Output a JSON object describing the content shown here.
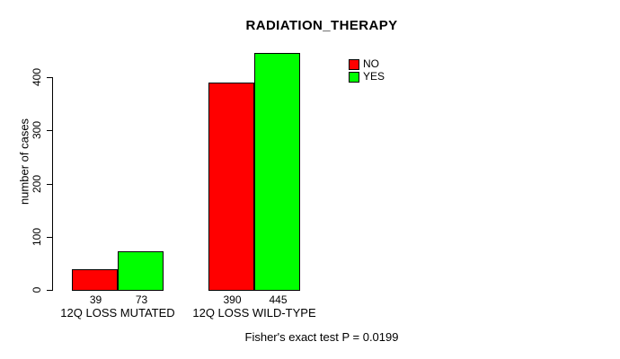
{
  "chart_data": {
    "type": "bar",
    "title": "RADIATION_THERAPY",
    "xlabel": "",
    "ylabel": "number of cases",
    "categories": [
      "12Q LOSS MUTATED",
      "12Q LOSS WILD-TYPE"
    ],
    "series": [
      {
        "name": "NO",
        "color": "#ff0000",
        "values": [
          39,
          390
        ]
      },
      {
        "name": "YES",
        "color": "#00ff00",
        "values": [
          73,
          445
        ]
      }
    ],
    "bar_value_labels": [
      [
        "39",
        "73"
      ],
      [
        "390",
        "445"
      ]
    ],
    "yticks": [
      0,
      100,
      200,
      300,
      400
    ],
    "ylim": [
      0,
      450
    ],
    "grid": false,
    "legend_position": "top-right",
    "bar_border_color": "#000000",
    "annotation": "Fisher's exact test P = 0.0199"
  }
}
